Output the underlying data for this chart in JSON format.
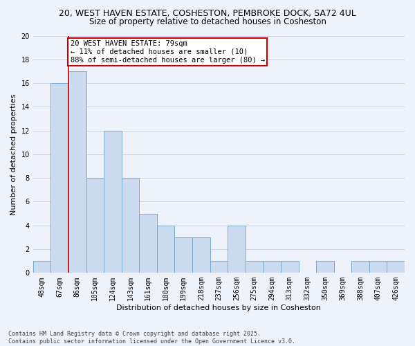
{
  "title_line1": "20, WEST HAVEN ESTATE, COSHESTON, PEMBROKE DOCK, SA72 4UL",
  "title_line2": "Size of property relative to detached houses in Cosheston",
  "xlabel": "Distribution of detached houses by size in Cosheston",
  "ylabel": "Number of detached properties",
  "bar_labels": [
    "48sqm",
    "67sqm",
    "86sqm",
    "105sqm",
    "124sqm",
    "143sqm",
    "161sqm",
    "180sqm",
    "199sqm",
    "218sqm",
    "237sqm",
    "256sqm",
    "275sqm",
    "294sqm",
    "313sqm",
    "332sqm",
    "350sqm",
    "369sqm",
    "388sqm",
    "407sqm",
    "426sqm"
  ],
  "bar_values": [
    1,
    16,
    17,
    8,
    12,
    8,
    5,
    4,
    3,
    3,
    1,
    4,
    1,
    1,
    1,
    0,
    1,
    0,
    1,
    1,
    1
  ],
  "bar_color": "#ccdcf0",
  "bar_edge_color": "#7aaad0",
  "annotation_text": "20 WEST HAVEN ESTATE: 79sqm\n← 11% of detached houses are smaller (10)\n88% of semi-detached houses are larger (80) →",
  "annotation_box_color": "#ffffff",
  "annotation_box_edge": "#cc0000",
  "property_line_color": "#cc0000",
  "property_line_x": 1.5,
  "ylim": [
    0,
    20
  ],
  "yticks": [
    0,
    2,
    4,
    6,
    8,
    10,
    12,
    14,
    16,
    18,
    20
  ],
  "grid_color": "#c0cce0",
  "footer_line1": "Contains HM Land Registry data © Crown copyright and database right 2025.",
  "footer_line2": "Contains public sector information licensed under the Open Government Licence v3.0.",
  "bg_color": "#eef2fb",
  "title_fontsize": 9,
  "subtitle_fontsize": 8.5,
  "tick_fontsize": 7,
  "label_fontsize": 8,
  "annotation_fontsize": 7.5
}
